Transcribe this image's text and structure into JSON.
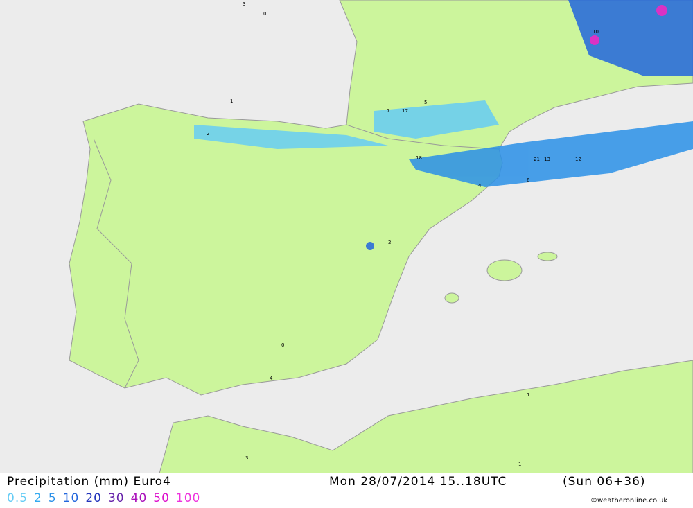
{
  "header": {
    "title": "Precipitation (mm) Euro4",
    "date": "Mon 28/07/2014 15..18UTC",
    "run": "(Sun 06+36)"
  },
  "legend": [
    {
      "value": 0.5,
      "color": "#66ccf5"
    },
    {
      "value": 2,
      "color": "#33aaf0"
    },
    {
      "value": 5,
      "color": "#2a90e8"
    },
    {
      "value": 10,
      "color": "#2266dd"
    },
    {
      "value": 20,
      "color": "#2233bb"
    },
    {
      "value": 30,
      "color": "#6622aa"
    },
    {
      "value": 40,
      "color": "#aa11bb"
    },
    {
      "value": 50,
      "color": "#dd11cc"
    },
    {
      "value": 100,
      "color": "#ee33dd"
    }
  ],
  "credit": "©weatheronline.co.uk",
  "map_labels": [
    "1",
    "3",
    "2",
    "0",
    "5",
    "7",
    "17",
    "21",
    "12",
    "13",
    "4",
    "18",
    "10",
    "6",
    "2",
    "1",
    "3",
    "0",
    "4",
    "1"
  ]
}
